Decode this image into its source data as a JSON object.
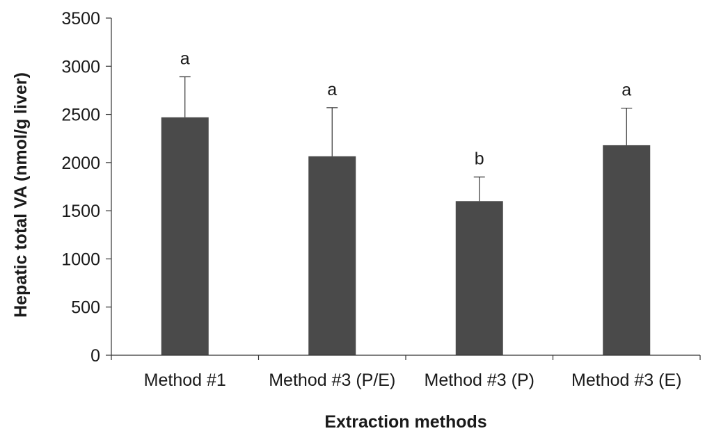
{
  "chart_data": {
    "type": "bar",
    "title": "",
    "xlabel": "Extraction methods",
    "ylabel": "Hepatic total VA (nmol/g liver)",
    "ylim": [
      0,
      3500
    ],
    "yticks": [
      0,
      500,
      1000,
      1500,
      2000,
      2500,
      3000,
      3500
    ],
    "categories": [
      "Method #1",
      "Method #3 (P/E)",
      "Method #3 (P)",
      "Method #3 (E)"
    ],
    "values": [
      2470,
      2065,
      1600,
      2180
    ],
    "error_plus": [
      420,
      505,
      250,
      385
    ],
    "significance_labels": [
      "a",
      "a",
      "b",
      "a"
    ],
    "bar_color": "#4a4a4a",
    "axis_color": "#333333",
    "grid": false,
    "legend": "none"
  }
}
